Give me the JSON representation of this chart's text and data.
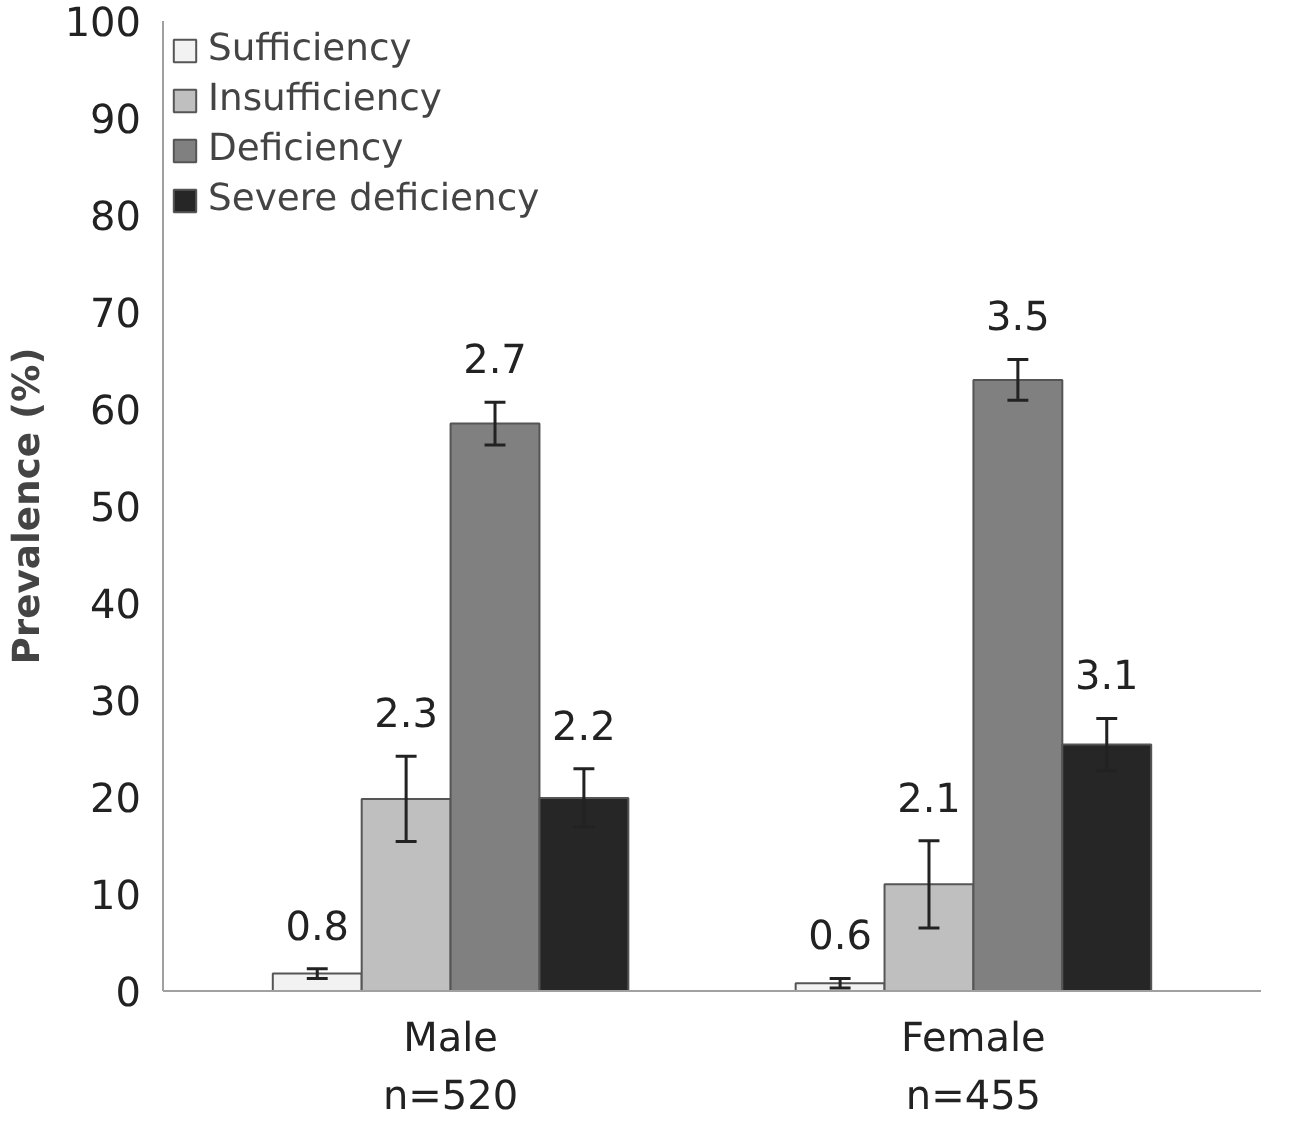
{
  "chart_data": {
    "type": "bar",
    "ylabel": "Prevalence (%)",
    "categories": [
      "Male\nn=520",
      "Female\nn=455"
    ],
    "series": [
      {
        "name": "Sufficiency",
        "color": "#f2f2f2",
        "values": [
          1.8,
          0.8
        ],
        "errors": [
          0.5,
          0.5
        ]
      },
      {
        "name": "Insufficiency",
        "color": "#bfbfbf",
        "values": [
          19.8,
          11.0
        ],
        "errors": [
          4.4,
          4.5
        ]
      },
      {
        "name": "Deficiency",
        "color": "#808080",
        "values": [
          58.5,
          63.0
        ],
        "errors": [
          2.2,
          2.1
        ]
      },
      {
        "name": "Severe deficiency",
        "color": "#262626",
        "values": [
          19.9,
          25.4
        ],
        "errors": [
          3.0,
          2.7
        ]
      }
    ],
    "annotations": [
      "0.8",
      "0.6",
      "2.3",
      "2.1",
      "2.7",
      "3.5",
      "2.2",
      "3.1"
    ],
    "ylim": [
      0,
      100
    ],
    "yticks": [
      0,
      10,
      20,
      30,
      40,
      50,
      60,
      70,
      80,
      90,
      100
    ],
    "grid": false,
    "legend": "top left"
  }
}
